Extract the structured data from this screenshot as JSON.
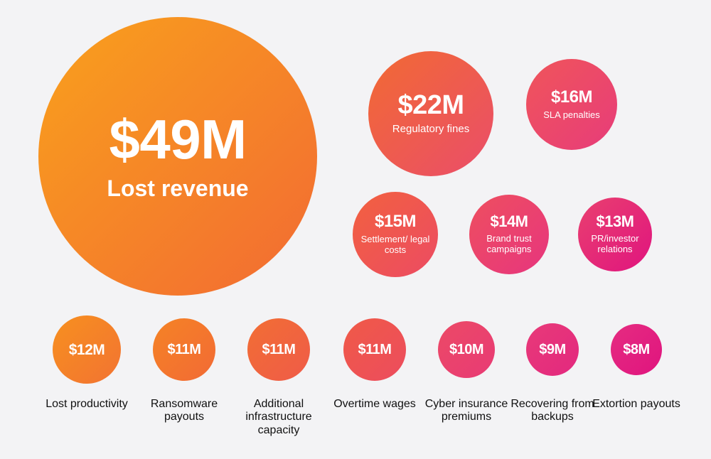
{
  "chart_data": {
    "type": "bubble",
    "title": "",
    "unit": "$M",
    "items": [
      {
        "value": 49,
        "value_label": "$49M",
        "label": "Lost revenue",
        "label_position": "inside"
      },
      {
        "value": 22,
        "value_label": "$22M",
        "label": "Regulatory fines",
        "label_position": "inside"
      },
      {
        "value": 16,
        "value_label": "$16M",
        "label": "SLA penalties",
        "label_position": "inside"
      },
      {
        "value": 15,
        "value_label": "$15M",
        "label": "Settlement/ legal costs",
        "label_position": "inside"
      },
      {
        "value": 14,
        "value_label": "$14M",
        "label": "Brand trust campaigns",
        "label_position": "inside"
      },
      {
        "value": 13,
        "value_label": "$13M",
        "label": "PR/investor relations",
        "label_position": "inside"
      },
      {
        "value": 12,
        "value_label": "$12M",
        "label": "Lost productivity",
        "label_position": "below"
      },
      {
        "value": 11,
        "value_label": "$11M",
        "label": "Ransomware payouts",
        "label_position": "below"
      },
      {
        "value": 11,
        "value_label": "$11M",
        "label": "Additional infrastructure capacity",
        "label_position": "below"
      },
      {
        "value": 11,
        "value_label": "$11M",
        "label": "Overtime wages",
        "label_position": "below"
      },
      {
        "value": 10,
        "value_label": "$10M",
        "label": "Cyber insurance premiums",
        "label_position": "below"
      },
      {
        "value": 9,
        "value_label": "$9M",
        "label": "Recovering from backups",
        "label_position": "below"
      },
      {
        "value": 8,
        "value_label": "$8M",
        "label": "Extortion payouts",
        "label_position": "below"
      }
    ],
    "colors": {
      "orange": "#f9a11c",
      "orange_deep": "#f26a33",
      "coral": "#f05a4e",
      "pink": "#e8417a",
      "magenta": "#e0147f"
    }
  }
}
